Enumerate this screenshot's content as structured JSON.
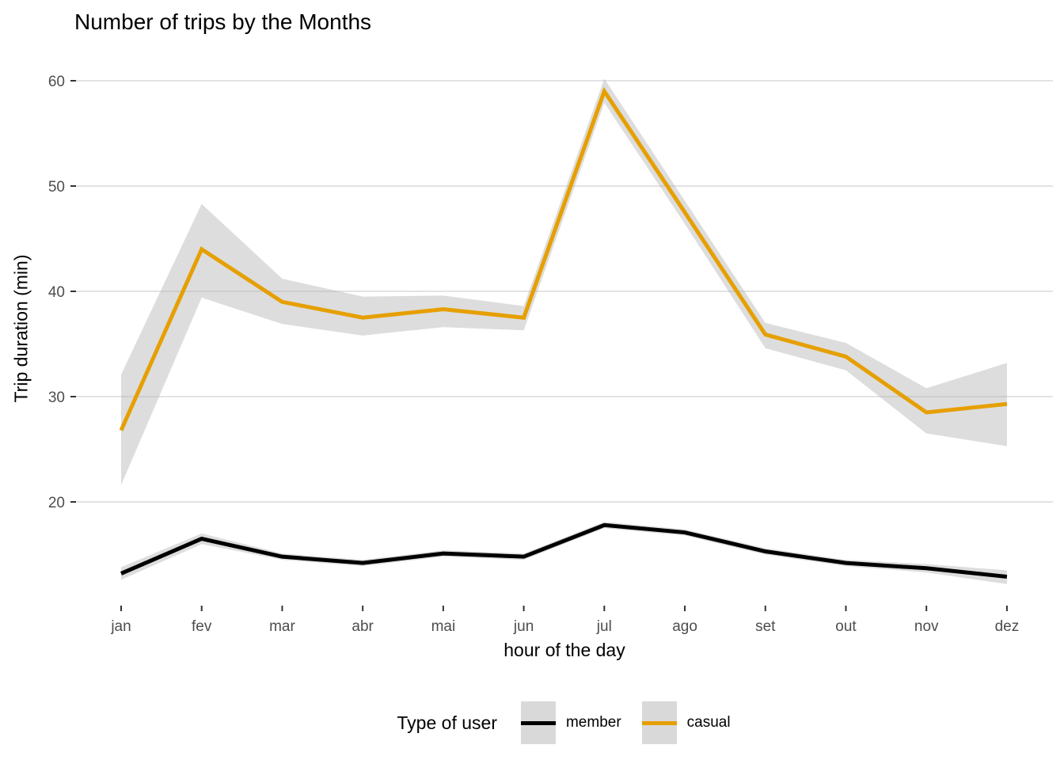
{
  "chart_data": {
    "type": "line",
    "title": "Number of trips by the Months",
    "xlabel": "hour of the day",
    "ylabel": "Trip duration (min)",
    "categories": [
      "jan",
      "fev",
      "mar",
      "abr",
      "mai",
      "jun",
      "jul",
      "ago",
      "set",
      "out",
      "nov",
      "dez"
    ],
    "y_ticks": [
      20,
      30,
      40,
      50,
      60
    ],
    "ylim": [
      10,
      62.5
    ],
    "grid": "horizontal-major-only",
    "legend_title": "Type of user",
    "legend_position": "bottom",
    "series": [
      {
        "name": "member",
        "color": "#000000",
        "values": [
          13.2,
          16.5,
          14.8,
          14.2,
          15.1,
          14.8,
          17.8,
          17.1,
          15.3,
          14.2,
          13.7,
          12.9
        ],
        "ribbon_low": [
          12.6,
          16.0,
          14.5,
          13.9,
          14.8,
          14.5,
          17.5,
          16.8,
          15.0,
          13.9,
          13.3,
          12.2
        ],
        "ribbon_high": [
          13.8,
          17.0,
          15.1,
          14.5,
          15.4,
          15.1,
          18.1,
          17.4,
          15.6,
          14.5,
          14.1,
          13.5
        ]
      },
      {
        "name": "casual",
        "color": "#E69F00",
        "values": [
          26.8,
          44.0,
          39.0,
          37.5,
          38.3,
          37.5,
          59.0,
          47.5,
          35.9,
          33.8,
          28.5,
          29.3
        ],
        "ribbon_low": [
          21.6,
          39.4,
          36.9,
          35.8,
          36.6,
          36.3,
          57.9,
          46.4,
          34.6,
          32.5,
          26.5,
          25.3
        ],
        "ribbon_high": [
          32.1,
          48.3,
          41.2,
          39.5,
          39.6,
          38.6,
          60.2,
          48.6,
          37.0,
          35.1,
          30.8,
          33.2
        ]
      }
    ],
    "style": {
      "grid_color": "#E3E3E3",
      "tick_color": "#333333",
      "tick_label_color": "#4D4D4D",
      "text_color": "#000000",
      "ribbon_color": "#AFAFAF",
      "ribbon_opacity": 0.42,
      "legend_key_fill": "#D9D9D9"
    }
  }
}
